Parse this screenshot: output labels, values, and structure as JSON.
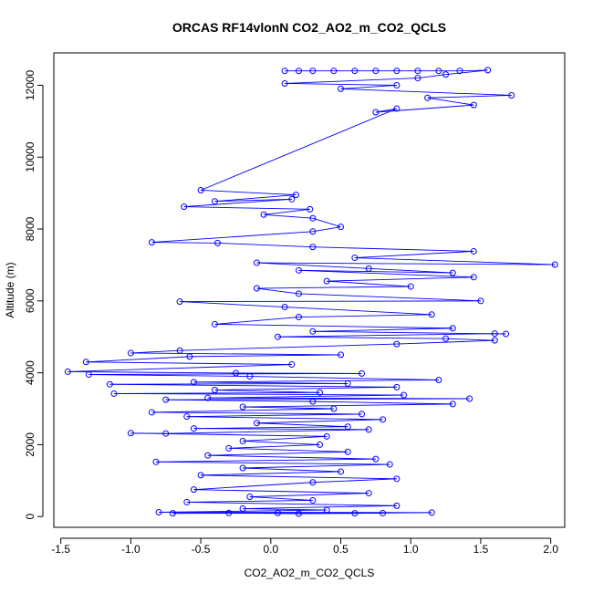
{
  "chart_data": {
    "type": "scatter",
    "title": "ORCAS RF14vlonN CO2_AO2_m_CO2_QCLS",
    "xlabel": "CO2_AO2_m_CO2_QCLS",
    "ylabel": "Altitude (m)",
    "xlim": [
      -1.55,
      2.1
    ],
    "ylim": [
      -300,
      12900
    ],
    "x_ticks": [
      -1.5,
      -1.0,
      -0.5,
      0.0,
      0.5,
      1.0,
      1.5,
      2.0
    ],
    "x_tick_labels": [
      "-1.5",
      "-1.0",
      "-0.5",
      "0.0",
      "0.5",
      "1.0",
      "1.5",
      "2.0"
    ],
    "y_ticks": [
      0,
      2000,
      4000,
      6000,
      8000,
      10000,
      12000
    ],
    "y_tick_labels": [
      "0",
      "2000",
      "4000",
      "6000",
      "8000",
      "10000",
      "12000"
    ],
    "series_color": "#0000ff",
    "marker": "open-circle",
    "connected": true,
    "series": [
      {
        "name": "CO2_AO2_m_CO2_QCLS",
        "points": [
          [
            0.1,
            12400
          ],
          [
            0.2,
            12400
          ],
          [
            0.3,
            12400
          ],
          [
            0.45,
            12400
          ],
          [
            0.6,
            12400
          ],
          [
            0.75,
            12400
          ],
          [
            0.9,
            12400
          ],
          [
            1.05,
            12400
          ],
          [
            1.2,
            12400
          ],
          [
            1.35,
            12400
          ],
          [
            1.55,
            12420
          ],
          [
            1.25,
            12300
          ],
          [
            1.05,
            12200
          ],
          [
            0.1,
            12050
          ],
          [
            0.9,
            12000
          ],
          [
            0.5,
            11900
          ],
          [
            1.72,
            11720
          ],
          [
            1.12,
            11650
          ],
          [
            1.45,
            11450
          ],
          [
            0.75,
            11250
          ],
          [
            0.9,
            11350
          ],
          [
            -0.5,
            9080
          ],
          [
            0.18,
            8950
          ],
          [
            -0.4,
            8770
          ],
          [
            0.15,
            8830
          ],
          [
            -0.62,
            8620
          ],
          [
            0.28,
            8550
          ],
          [
            -0.05,
            8400
          ],
          [
            0.3,
            8300
          ],
          [
            0.5,
            8060
          ],
          [
            0.3,
            7930
          ],
          [
            -0.85,
            7630
          ],
          [
            -0.38,
            7610
          ],
          [
            0.3,
            7500
          ],
          [
            1.45,
            7380
          ],
          [
            0.6,
            7200
          ],
          [
            2.03,
            7010
          ],
          [
            -0.1,
            7060
          ],
          [
            0.7,
            6900
          ],
          [
            1.3,
            6780
          ],
          [
            0.2,
            6850
          ],
          [
            1.45,
            6660
          ],
          [
            0.4,
            6550
          ],
          [
            1.0,
            6400
          ],
          [
            -0.1,
            6350
          ],
          [
            0.2,
            6200
          ],
          [
            1.5,
            6000
          ],
          [
            -0.65,
            5980
          ],
          [
            0.1,
            5830
          ],
          [
            1.15,
            5620
          ],
          [
            0.2,
            5550
          ],
          [
            -0.4,
            5350
          ],
          [
            1.3,
            5240
          ],
          [
            0.3,
            5150
          ],
          [
            1.68,
            5080
          ],
          [
            1.6,
            5090
          ],
          [
            0.05,
            5000
          ],
          [
            1.25,
            4950
          ],
          [
            1.6,
            4900
          ],
          [
            0.9,
            4800
          ],
          [
            -0.65,
            4620
          ],
          [
            -1.0,
            4550
          ],
          [
            0.5,
            4500
          ],
          [
            -0.58,
            4450
          ],
          [
            -1.32,
            4300
          ],
          [
            0.15,
            4230
          ],
          [
            -1.45,
            4030
          ],
          [
            -0.25,
            3990
          ],
          [
            0.65,
            3980
          ],
          [
            -1.3,
            3950
          ],
          [
            -0.15,
            3900
          ],
          [
            1.2,
            3800
          ],
          [
            -0.55,
            3740
          ],
          [
            0.55,
            3700
          ],
          [
            -1.15,
            3680
          ],
          [
            0.9,
            3600
          ],
          [
            -0.4,
            3520
          ],
          [
            0.35,
            3450
          ],
          [
            -1.12,
            3420
          ],
          [
            0.95,
            3380
          ],
          [
            -0.45,
            3300
          ],
          [
            1.42,
            3280
          ],
          [
            -0.75,
            3250
          ],
          [
            0.3,
            3200
          ],
          [
            1.3,
            3130
          ],
          [
            -0.2,
            3050
          ],
          [
            0.45,
            3000
          ],
          [
            -0.85,
            2900
          ],
          [
            0.65,
            2850
          ],
          [
            -0.6,
            2780
          ],
          [
            0.8,
            2700
          ],
          [
            -0.1,
            2600
          ],
          [
            0.55,
            2500
          ],
          [
            -0.55,
            2450
          ],
          [
            0.7,
            2420
          ],
          [
            -0.75,
            2310
          ],
          [
            -1.0,
            2320
          ],
          [
            0.4,
            2230
          ],
          [
            -0.2,
            2100
          ],
          [
            0.35,
            2000
          ],
          [
            -0.3,
            1900
          ],
          [
            0.55,
            1800
          ],
          [
            -0.45,
            1700
          ],
          [
            0.75,
            1600
          ],
          [
            -0.82,
            1520
          ],
          [
            0.85,
            1450
          ],
          [
            -0.2,
            1350
          ],
          [
            0.5,
            1250
          ],
          [
            -0.5,
            1150
          ],
          [
            0.9,
            1050
          ],
          [
            0.3,
            950
          ],
          [
            -0.55,
            750
          ],
          [
            0.7,
            650
          ],
          [
            -0.15,
            550
          ],
          [
            0.3,
            450
          ],
          [
            -0.6,
            400
          ],
          [
            0.9,
            300
          ],
          [
            -0.2,
            220
          ],
          [
            0.4,
            180
          ],
          [
            -0.8,
            120
          ],
          [
            1.15,
            110
          ],
          [
            0.6,
            90
          ],
          [
            -0.3,
            100
          ],
          [
            0.2,
            80
          ],
          [
            0.8,
            95
          ],
          [
            -0.7,
            90
          ],
          [
            0.05,
            100
          ]
        ]
      }
    ]
  }
}
